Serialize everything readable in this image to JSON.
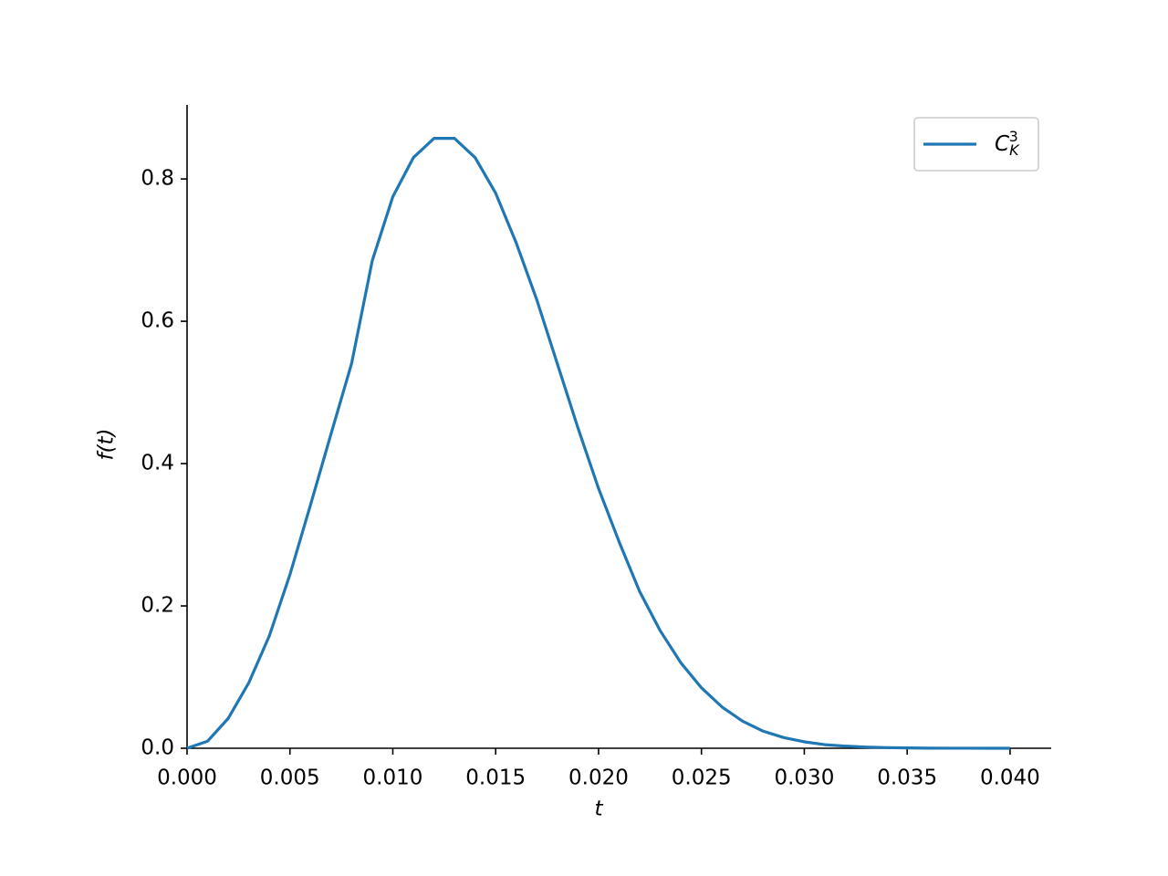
{
  "chart_data": {
    "type": "line",
    "xlabel": "t",
    "ylabel": "f(t)",
    "x": [
      0,
      0.001,
      0.002,
      0.003,
      0.004,
      0.005,
      0.006,
      0.007,
      0.008,
      0.009,
      0.01,
      0.011,
      0.012,
      0.013,
      0.014,
      0.015,
      0.016,
      0.017,
      0.018,
      0.019,
      0.02,
      0.021,
      0.022,
      0.023,
      0.024,
      0.025,
      0.026,
      0.027,
      0.028,
      0.029,
      0.03,
      0.031,
      0.032,
      0.033,
      0.034,
      0.035,
      0.036,
      0.037,
      0.038,
      0.039,
      0.04
    ],
    "series": [
      {
        "name": "C_K^3",
        "color": "#1f77b4",
        "values": [
          0,
          0.01,
          0.042,
          0.092,
          0.158,
          0.244,
          0.342,
          0.442,
          0.541,
          0.685,
          0.775,
          0.83,
          0.857,
          0.857,
          0.83,
          0.78,
          0.71,
          0.63,
          0.54,
          0.45,
          0.365,
          0.29,
          0.22,
          0.165,
          0.12,
          0.085,
          0.058,
          0.038,
          0.024,
          0.015,
          0.009,
          0.005,
          0.003,
          0.0017,
          0.0009,
          0.0005,
          0.0002,
          0.0001,
          5e-05,
          2e-05,
          1e-05
        ]
      }
    ],
    "xlim": [
      0,
      0.042
    ],
    "ylim": [
      0,
      0.904
    ],
    "xticks": [
      {
        "value": 0,
        "label": "0.000"
      },
      0.005,
      {
        "value": 0.01,
        "label": "0.010"
      },
      0.015,
      {
        "value": 0.02,
        "label": "0.020"
      },
      0.025,
      {
        "value": 0.03,
        "label": "0.030"
      },
      0.035,
      {
        "value": 0.04,
        "label": "0.040"
      }
    ],
    "yticks": [
      {
        "value": 0,
        "label": "0.0"
      },
      0.2,
      0.4,
      0.6,
      0.8
    ],
    "legend": "upper right"
  }
}
